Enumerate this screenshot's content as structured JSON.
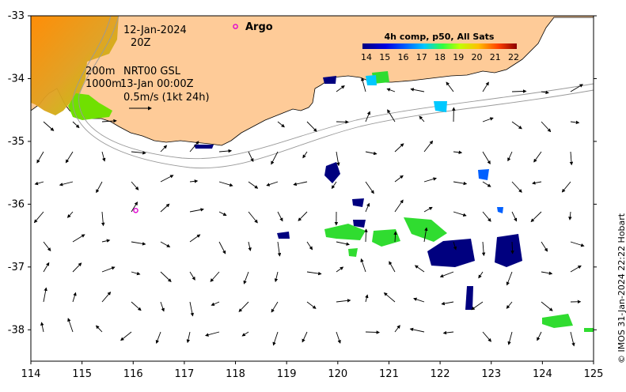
{
  "map": {
    "lon_range": [
      114,
      125
    ],
    "lat_range": [
      -38.5,
      -33
    ],
    "x_ticks": [
      "114",
      "115",
      "116",
      "117",
      "118",
      "119",
      "120",
      "121",
      "122",
      "123",
      "124",
      "125"
    ],
    "y_ticks": [
      "-33",
      "-34",
      "-35",
      "-36",
      "-37",
      "-38"
    ],
    "land_color": "#fecb98",
    "ocean_color": "#ffffff"
  },
  "annotations": {
    "date": "12-Jan-2024",
    "hour": "20Z",
    "isobath_label_1": "200m",
    "isobath_label_2": "1000m",
    "product": "NRT00 GSL",
    "valid_time": "13-Jan 00:00Z",
    "scale": "0.5m/s (1kt 24h)",
    "argo_label": "Argo",
    "credit": "© IMOS 31-Jan-2024 22:22 Hobart"
  },
  "colorbar": {
    "title": "4h comp, p50, All Sats",
    "labels": [
      "14",
      "15",
      "16",
      "17",
      "18",
      "19",
      "20",
      "21",
      "22"
    ],
    "stops": [
      "#00007f",
      "#0000e0",
      "#0060ff",
      "#00c8ff",
      "#30ff40",
      "#c0ff00",
      "#ffc000",
      "#ff4000",
      "#8b0000"
    ]
  },
  "argo_floats": [
    {
      "lon": 118.0,
      "lat": -33.17
    },
    {
      "lon": 116.05,
      "lat": -36.1
    }
  ],
  "argo_color": "#e000d0"
}
